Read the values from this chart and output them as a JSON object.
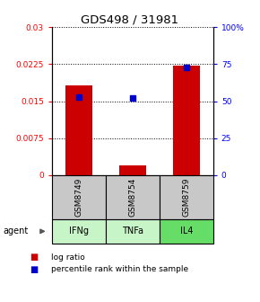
{
  "title": "GDS498 / 31981",
  "samples": [
    "GSM8749",
    "GSM8754",
    "GSM8759"
  ],
  "agents": [
    "IFNg",
    "TNFa",
    "IL4"
  ],
  "log_ratio": [
    0.0182,
    0.002,
    0.0222
  ],
  "percentile_rank": [
    53,
    52,
    73
  ],
  "bar_color": "#cc0000",
  "dot_color": "#0000cc",
  "left_ylim": [
    0,
    0.03
  ],
  "right_ylim": [
    0,
    100
  ],
  "left_yticks": [
    0,
    0.0075,
    0.015,
    0.0225,
    0.03
  ],
  "left_yticklabels": [
    "0",
    "0.0075",
    "0.015",
    "0.0225",
    "0.03"
  ],
  "right_yticks": [
    0,
    25,
    50,
    75,
    100
  ],
  "right_yticklabels": [
    "0",
    "25",
    "50",
    "75",
    "100%"
  ],
  "bar_width": 0.5,
  "sample_box_color": "#c8c8c8",
  "agent_colors": [
    "#c8f5c8",
    "#c8f5c8",
    "#66dd66"
  ],
  "legend_red_label": "log ratio",
  "legend_blue_label": "percentile rank within the sample"
}
